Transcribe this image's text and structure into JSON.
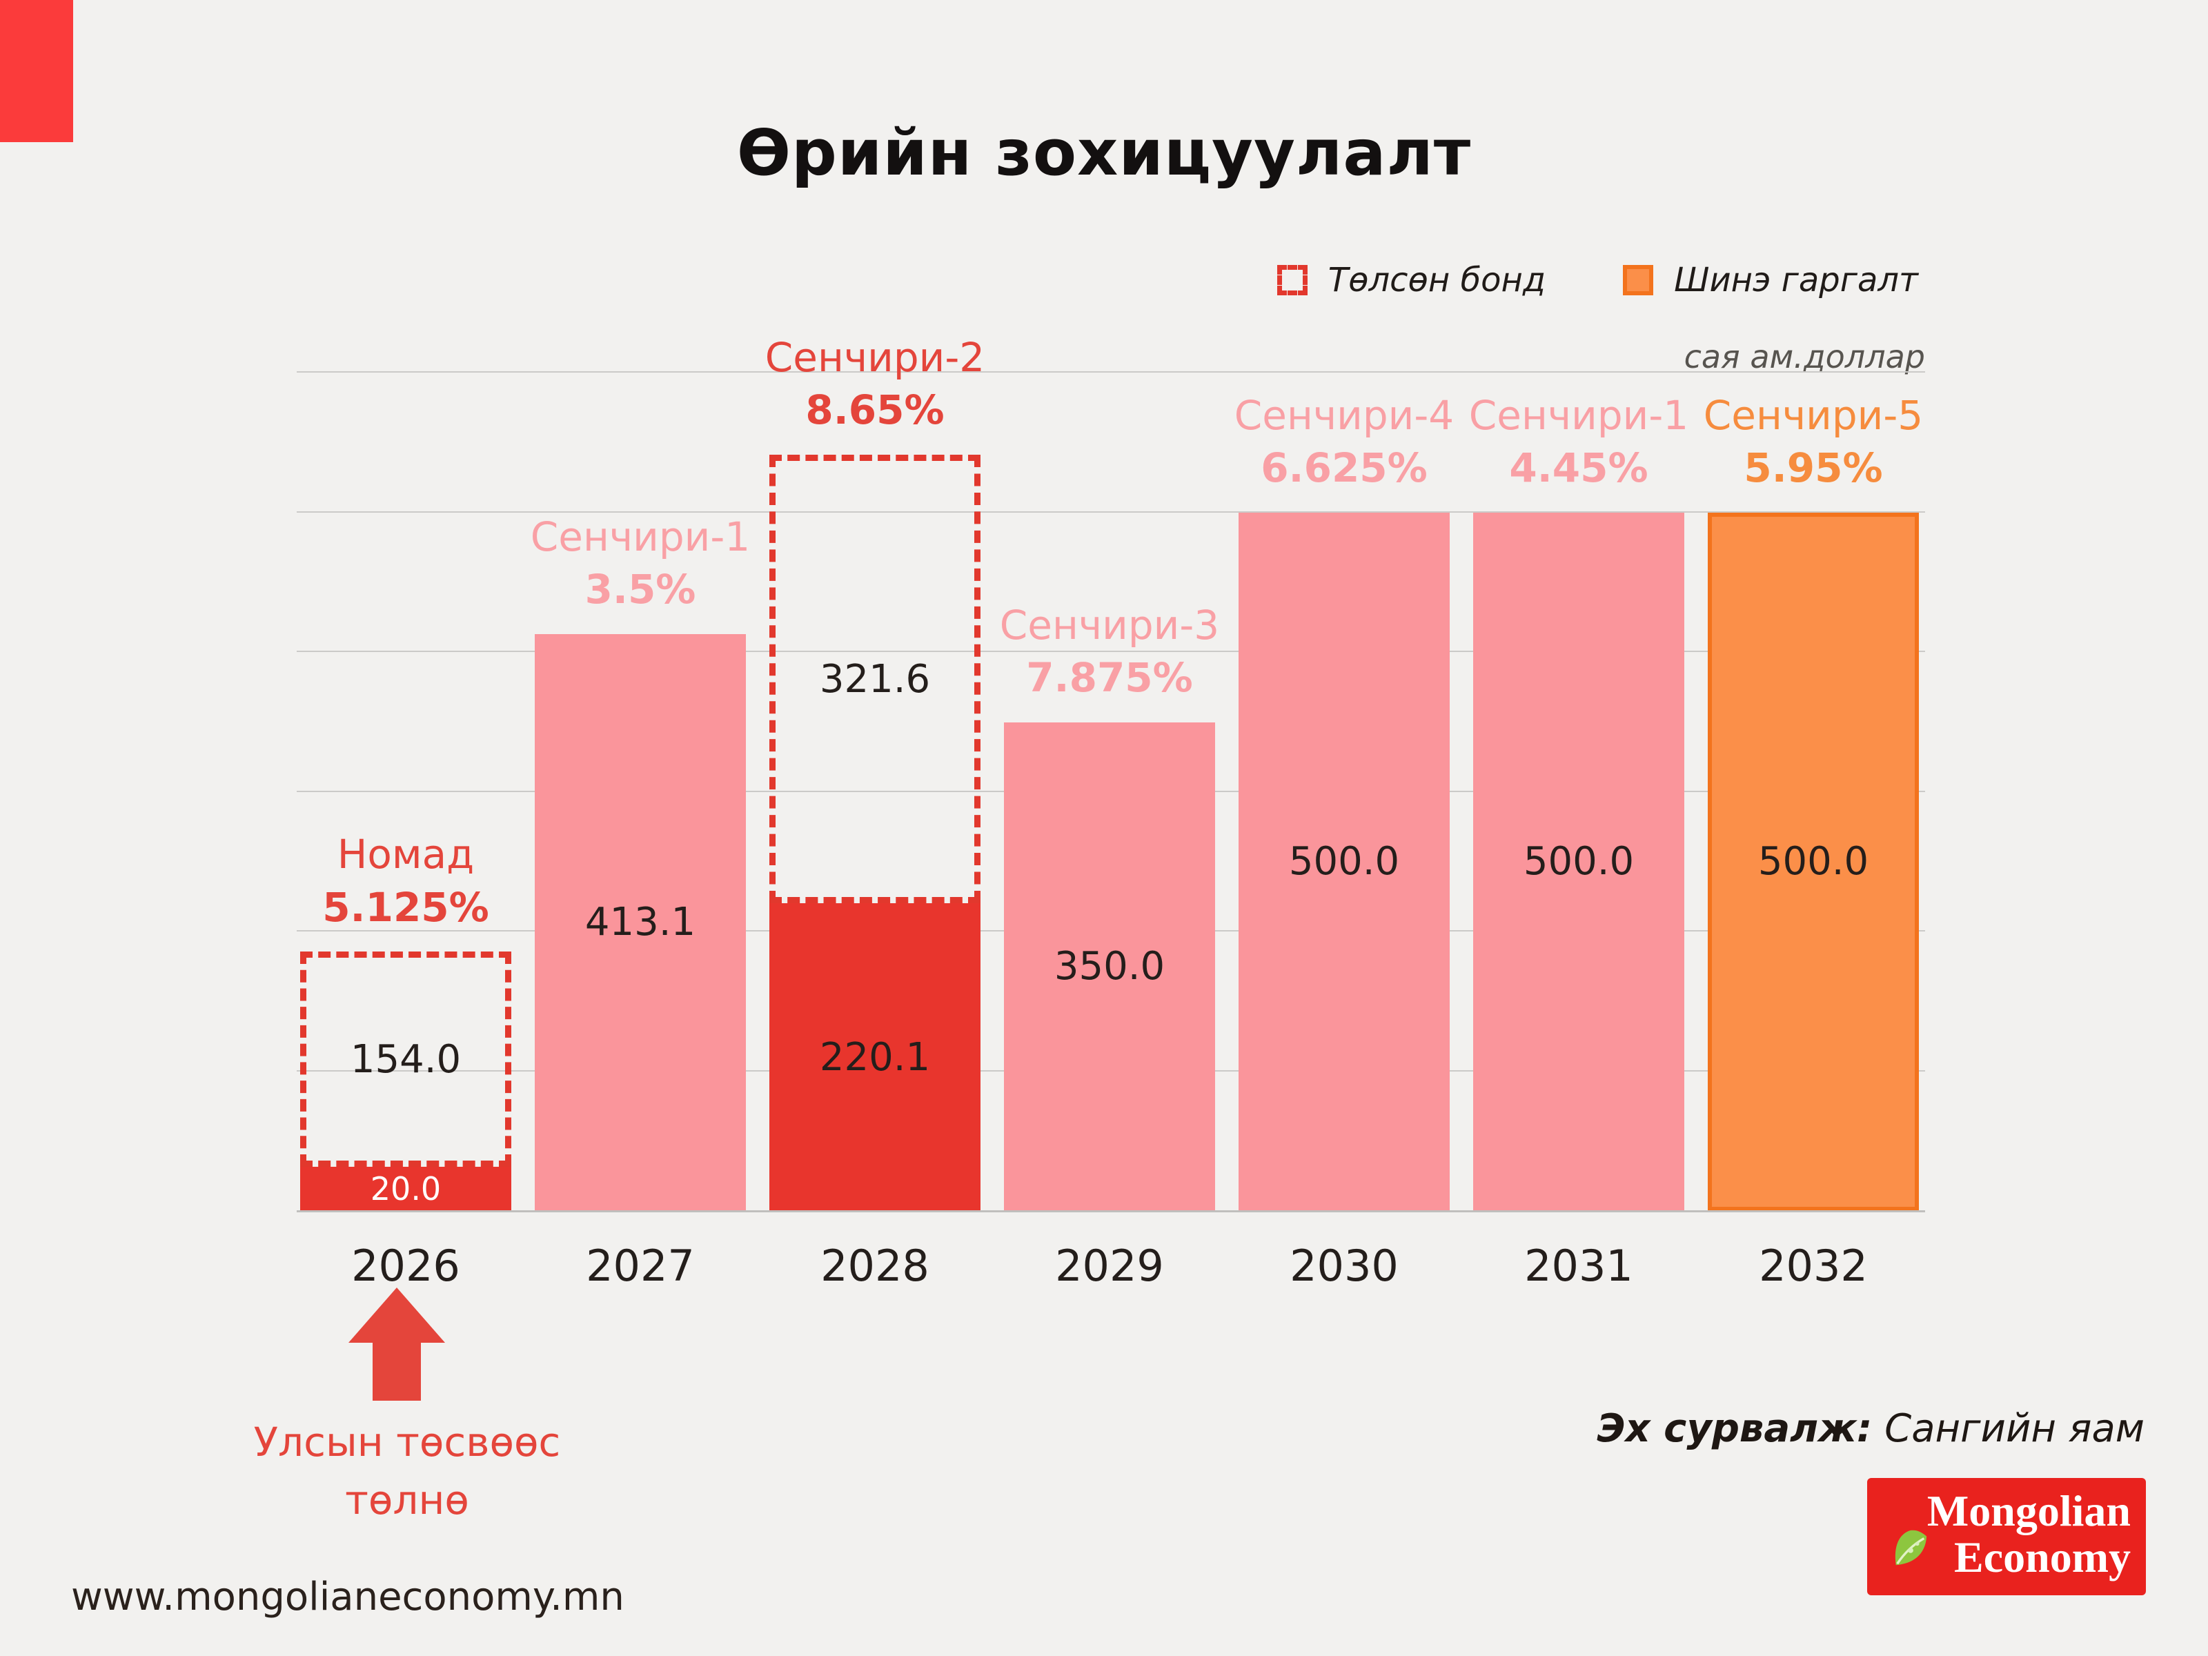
{
  "title": "Өрийн зохицуулалт",
  "legend": [
    {
      "label": "Төлсөн бонд",
      "swatch": "dashed-red-square"
    },
    {
      "label": "Шинэ гаргалт",
      "swatch": "orange-filled-square"
    }
  ],
  "unit_label": "сая ам.доллар",
  "annotation": {
    "arrow_note_line1": "Улсын төсвөөс",
    "arrow_note_line2": "төлнө"
  },
  "footer": {
    "website": "www.mongolianeconomy.mn",
    "source_label": "Эх сурвалж:",
    "source_value": "Сангийн яам",
    "logo_line1": "Mongolian",
    "logo_line2": "Economy"
  },
  "colors": {
    "background": "#f2f1ef",
    "corner_red": "#fb3b3b",
    "bar_red": "#e8352d",
    "bar_pink": "#fa959b",
    "bar_orange": "#fb8f49",
    "orange_border": "#f3731d",
    "dashed_red": "#e2382d",
    "text_red": "#e4453b",
    "text_pink": "#f9a0a5",
    "text_orange": "#f68c3e",
    "text_dark": "#241e1b",
    "gridline": "#cbcac8",
    "axisline": "#c0bfbd",
    "logo_red": "#e9221e",
    "leaf_green": "#8dc63f"
  },
  "chart_data": {
    "type": "bar",
    "stacked": true,
    "title": "Өрийн зохицуулалт",
    "unit": "сая ам.доллар",
    "legend_position": "top-right",
    "grid": true,
    "gridlines": [
      100,
      200,
      300,
      400,
      500,
      600
    ],
    "ylim": [
      0,
      620
    ],
    "categories": [
      "2026",
      "2027",
      "2028",
      "2029",
      "2030",
      "2031",
      "2032"
    ],
    "bars": [
      {
        "year": "2026",
        "label_name": "Номад",
        "label_rate": "5.125%",
        "label_color": "red",
        "segments": [
          {
            "value": 20.0,
            "display": "20.0",
            "style": "red",
            "text": "white"
          },
          {
            "value": 154.0,
            "display": "154.0",
            "style": "dashed",
            "text": "dark"
          }
        ]
      },
      {
        "year": "2027",
        "label_name": "Сенчири-1",
        "label_rate": "3.5%",
        "label_color": "pink",
        "segments": [
          {
            "value": 413.1,
            "display": "413.1",
            "style": "pink",
            "text": "dark"
          }
        ]
      },
      {
        "year": "2028",
        "label_name": "Сенчири-2",
        "label_rate": "8.65%",
        "label_color": "red",
        "segments": [
          {
            "value": 220.1,
            "display": "220.1",
            "style": "red",
            "text": "dark"
          },
          {
            "value": 321.6,
            "display": "321.6",
            "style": "dashed",
            "text": "dark"
          }
        ]
      },
      {
        "year": "2029",
        "label_name": "Сенчири-3",
        "label_rate": "7.875%",
        "label_color": "pink",
        "segments": [
          {
            "value": 350.0,
            "display": "350.0",
            "style": "pink",
            "text": "dark"
          }
        ]
      },
      {
        "year": "2030",
        "label_name": "Сенчири-4",
        "label_rate": "6.625%",
        "label_color": "pink",
        "segments": [
          {
            "value": 500.0,
            "display": "500.0",
            "style": "pink",
            "text": "dark"
          }
        ]
      },
      {
        "year": "2031",
        "label_name": "Сенчири-1",
        "label_rate": "4.45%",
        "label_color": "pink",
        "segments": [
          {
            "value": 500.0,
            "display": "500.0",
            "style": "pink",
            "text": "dark"
          }
        ]
      },
      {
        "year": "2032",
        "label_name": "Сенчири-5",
        "label_rate": "5.95%",
        "label_color": "orange",
        "segments": [
          {
            "value": 500.0,
            "display": "500.0",
            "style": "orange",
            "text": "dark"
          }
        ]
      }
    ]
  }
}
